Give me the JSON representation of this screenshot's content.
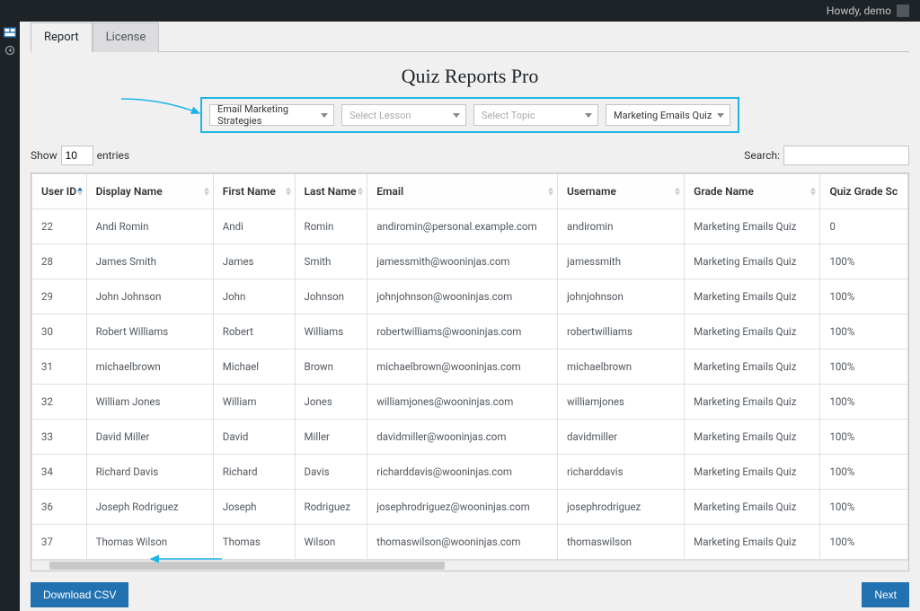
{
  "adminbar": {
    "greeting": "Howdy, demo"
  },
  "tabs": {
    "items": [
      {
        "label": "Report"
      },
      {
        "label": "License"
      }
    ],
    "active": 0
  },
  "page_title": "Quiz Reports Pro",
  "filters": {
    "border_color": "#1eb4e6",
    "course": "Email Marketing Strategies",
    "lesson_placeholder": "Select Lesson",
    "topic_placeholder": "Select Topic",
    "quiz": "Marketing Emails Quiz"
  },
  "entries": {
    "show_label": "Show",
    "entries_label": "entries",
    "value": "10"
  },
  "search": {
    "label": "Search:",
    "value": ""
  },
  "table": {
    "columns": [
      {
        "key": "user_id",
        "label": "User ID",
        "sorted": true
      },
      {
        "key": "display_name",
        "label": "Display Name"
      },
      {
        "key": "first_name",
        "label": "First Name"
      },
      {
        "key": "last_name",
        "label": "Last Name"
      },
      {
        "key": "email",
        "label": "Email"
      },
      {
        "key": "username",
        "label": "Username"
      },
      {
        "key": "grade_name",
        "label": "Grade Name"
      },
      {
        "key": "quiz_grade_score",
        "label": "Quiz Grade Sc"
      }
    ],
    "rows": [
      {
        "user_id": "22",
        "display_name": "Andi Romin",
        "first_name": "Andi",
        "last_name": "Romin",
        "email": "andiromin@personal.example.com",
        "username": "andiromin",
        "grade_name": "Marketing Emails Quiz",
        "quiz_grade_score": "0"
      },
      {
        "user_id": "28",
        "display_name": "James Smith",
        "first_name": "James",
        "last_name": "Smith",
        "email": "jamessmith@wooninjas.com",
        "username": "jamessmith",
        "grade_name": "Marketing Emails Quiz",
        "quiz_grade_score": "100%"
      },
      {
        "user_id": "29",
        "display_name": "John Johnson",
        "first_name": "John",
        "last_name": "Johnson",
        "email": "johnjohnson@wooninjas.com",
        "username": "johnjohnson",
        "grade_name": "Marketing Emails Quiz",
        "quiz_grade_score": "100%"
      },
      {
        "user_id": "30",
        "display_name": "Robert Williams",
        "first_name": "Robert",
        "last_name": "Williams",
        "email": "robertwilliams@wooninjas.com",
        "username": "robertwilliams",
        "grade_name": "Marketing Emails Quiz",
        "quiz_grade_score": "100%"
      },
      {
        "user_id": "31",
        "display_name": "michaelbrown",
        "first_name": "Michael",
        "last_name": "Brown",
        "email": "michaelbrown@wooninjas.com",
        "username": "michaelbrown",
        "grade_name": "Marketing Emails Quiz",
        "quiz_grade_score": "100%"
      },
      {
        "user_id": "32",
        "display_name": "William Jones",
        "first_name": "William",
        "last_name": "Jones",
        "email": "williamjones@wooninjas.com",
        "username": "williamjones",
        "grade_name": "Marketing Emails Quiz",
        "quiz_grade_score": "100%"
      },
      {
        "user_id": "33",
        "display_name": "David Miller",
        "first_name": "David",
        "last_name": "Miller",
        "email": "davidmiller@wooninjas.com",
        "username": "davidmiller",
        "grade_name": "Marketing Emails Quiz",
        "quiz_grade_score": "100%"
      },
      {
        "user_id": "34",
        "display_name": "Richard Davis",
        "first_name": "Richard",
        "last_name": "Davis",
        "email": "richarddavis@wooninjas.com",
        "username": "richarddavis",
        "grade_name": "Marketing Emails Quiz",
        "quiz_grade_score": "100%"
      },
      {
        "user_id": "36",
        "display_name": "Joseph Rodriguez",
        "first_name": "Joseph",
        "last_name": "Rodriguez",
        "email": "josephrodriguez@wooninjas.com",
        "username": "josephrodriguez",
        "grade_name": "Marketing Emails Quiz",
        "quiz_grade_score": "100%"
      },
      {
        "user_id": "37",
        "display_name": "Thomas Wilson",
        "first_name": "Thomas",
        "last_name": "Wilson",
        "email": "thomaswilson@wooninjas.com",
        "username": "thomaswilson",
        "grade_name": "Marketing Emails Quiz",
        "quiz_grade_score": "100%"
      }
    ]
  },
  "buttons": {
    "download_csv": "Download CSV",
    "next": "Next"
  },
  "colors": {
    "accent": "#2271b1",
    "highlight": "#1eb4e6",
    "bg": "#f0f0f1",
    "text": "#333333"
  },
  "annotation_arrows": {
    "color": "#1eb4e6"
  }
}
